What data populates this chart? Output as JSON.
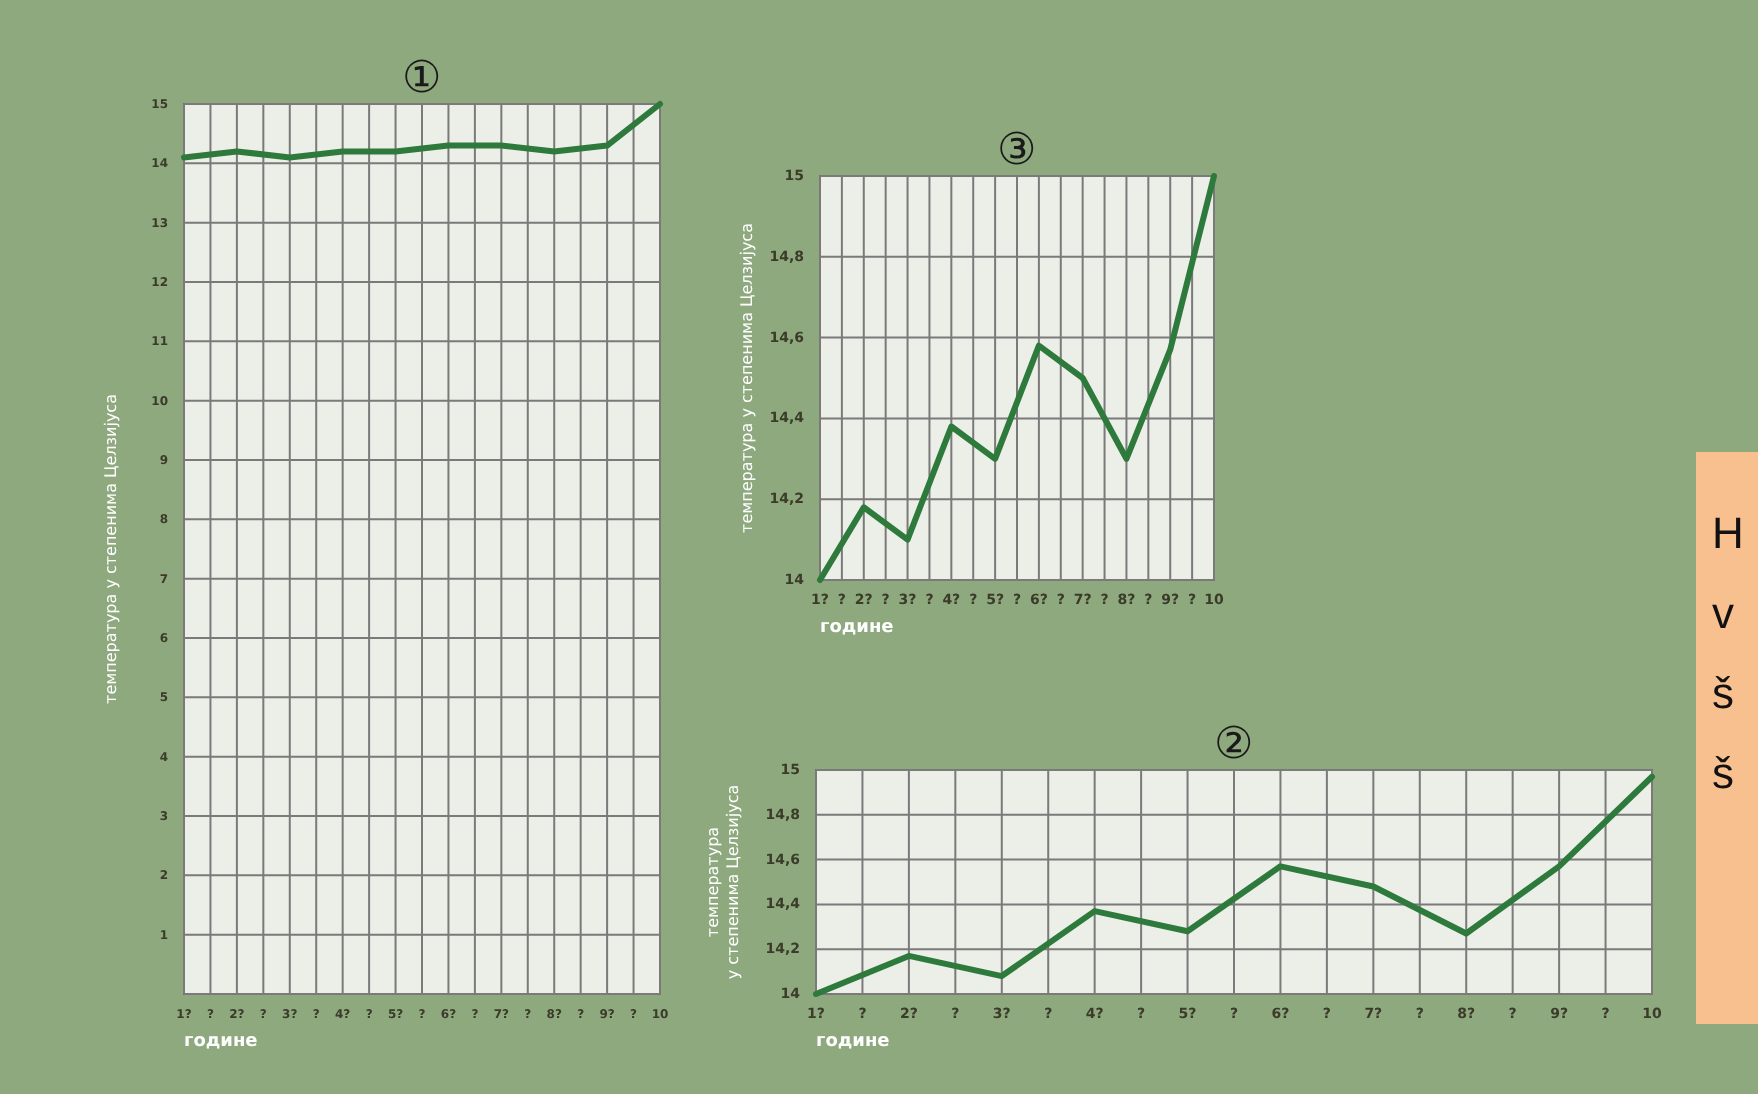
{
  "chart_data": [
    {
      "type": "line",
      "title": "①",
      "xlabel": "године",
      "ylabel": "температура у степенима Целзијуса",
      "categories": [
        "1?",
        "?",
        "2?",
        "?",
        "3?",
        "?",
        "4?",
        "?",
        "5?",
        "?",
        "6?",
        "?",
        "7?",
        "?",
        "8?",
        "?",
        "9?",
        "?",
        "10"
      ],
      "values": [
        14.1,
        null,
        14.2,
        null,
        14.1,
        null,
        14.2,
        null,
        14.2,
        null,
        14.3,
        null,
        14.3,
        null,
        14.2,
        null,
        14.3,
        null,
        15
      ],
      "color": "#2e7a3c",
      "ylim": [
        0,
        15
      ],
      "yticks": [
        {
          "value": 0,
          "label": null
        },
        1,
        2,
        3,
        4,
        5,
        6,
        7,
        8,
        9,
        10,
        11,
        12,
        13,
        14,
        15
      ],
      "grid": true
    },
    {
      "type": "line",
      "title": "③",
      "xlabel": "године",
      "ylabel": "температура у степенима Целзијуса",
      "categories": [
        "1?",
        "?",
        "2?",
        "?",
        "3?",
        "?",
        "4?",
        "?",
        "5?",
        "?",
        "6?",
        "?",
        "7?",
        "?",
        "8?",
        "?",
        "9?",
        "?",
        "10"
      ],
      "values": [
        14,
        null,
        14.18,
        null,
        14.1,
        null,
        14.38,
        null,
        14.3,
        null,
        14.58,
        null,
        14.5,
        null,
        14.3,
        null,
        14.57,
        null,
        15
      ],
      "color": "#2e7a3c",
      "ylim": [
        14,
        15
      ],
      "yticks": [
        14,
        {
          "value": 14.2,
          "label": "14,2"
        },
        {
          "value": 14.4,
          "label": "14,4"
        },
        {
          "value": 14.6,
          "label": "14,6"
        },
        {
          "value": 14.8,
          "label": "14,8"
        },
        15
      ],
      "grid": true
    },
    {
      "type": "line",
      "title": "②",
      "xlabel": "године",
      "ylabel": "температура\nу степенима Целзијуса",
      "categories": [
        "1?",
        "?",
        "2?",
        "?",
        "3?",
        "?",
        "4?",
        "?",
        "5?",
        "?",
        "6?",
        "?",
        "7?",
        "?",
        "8?",
        "?",
        "9?",
        "?",
        "10"
      ],
      "values": [
        14,
        null,
        14.17,
        null,
        14.08,
        null,
        14.37,
        null,
        14.28,
        null,
        14.57,
        null,
        14.48,
        null,
        14.27,
        null,
        14.57,
        null,
        14.97
      ],
      "color": "#2e7a3c",
      "ylim": [
        14,
        15
      ],
      "yticks": [
        14,
        {
          "value": 14.2,
          "label": "14,2"
        },
        {
          "value": 14.4,
          "label": "14,4"
        },
        {
          "value": 14.6,
          "label": "14,6"
        },
        {
          "value": 14.8,
          "label": "14,8"
        },
        15
      ],
      "grid": true
    },
    {
      "type": "other",
      "annotations": [
        "H",
        "v",
        "š",
        "š"
      ]
    }
  ]
}
